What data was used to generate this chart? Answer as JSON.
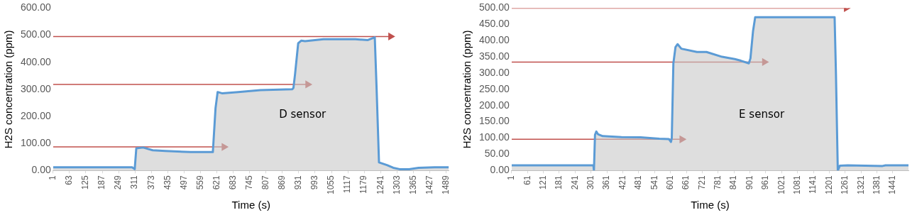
{
  "chart_data": [
    {
      "type": "area",
      "xlabel": "Time (s)",
      "ylabel": "H2S concentration (ppm)",
      "annotations": [
        "D sensor"
      ],
      "grid": false,
      "legend": false,
      "xlim": [
        1,
        1500
      ],
      "xticks": [
        1,
        63,
        125,
        187,
        249,
        311,
        373,
        435,
        497,
        559,
        621,
        683,
        745,
        807,
        869,
        931,
        993,
        1055,
        1117,
        1179,
        1241,
        1303,
        1365,
        1427,
        1489
      ],
      "ylim": [
        0,
        600
      ],
      "yticks": [
        {
          "value": 0,
          "label": "0.00"
        },
        {
          "value": 100,
          "label": "100.00"
        },
        {
          "value": 200,
          "label": "200.00"
        },
        {
          "value": 300,
          "label": "300.00"
        },
        {
          "value": 400,
          "label": "400.00"
        },
        {
          "value": 500,
          "label": "500.00"
        },
        {
          "value": 600,
          "label": "600.00"
        }
      ],
      "series": [
        {
          "color": "#5b9bd5",
          "x": [
            1,
            100,
            200,
            300,
            310,
            316,
            342,
            378,
            426,
            522,
            604,
            606,
            616,
            624,
            642,
            702,
            786,
            906,
            911,
            917,
            929,
            941,
            955,
            1025,
            1145,
            1193,
            1219,
            1226,
            1235,
            1265,
            1289,
            1313,
            1349,
            1385,
            1445,
            1499
          ],
          "values": [
            12,
            12,
            12,
            12,
            5,
            82,
            85,
            75,
            72,
            68,
            68,
            70,
            230,
            290,
            285,
            290,
            297,
            300,
            305,
            355,
            470,
            480,
            478,
            485,
            485,
            482,
            492,
            300,
            30,
            20,
            10,
            5,
            5,
            10,
            12,
            12
          ]
        },
        {
          "type": "line",
          "color": "#c0504d",
          "marker": "triangle",
          "x": [
            1,
            648
          ],
          "values": [
            87,
            87
          ]
        },
        {
          "type": "line",
          "color": "#c0504d",
          "marker": "triangle",
          "x": [
            1,
            965
          ],
          "values": [
            318,
            318
          ]
        },
        {
          "type": "line",
          "color": "#c0504d",
          "marker": "triangle",
          "x": [
            1,
            1279
          ],
          "values": [
            495,
            495
          ]
        }
      ]
    },
    {
      "type": "area",
      "xlabel": "Time (s)",
      "ylabel": "H2S concentration (ppm)",
      "annotations": [
        "E sensor"
      ],
      "grid": false,
      "legend": false,
      "xlim": [
        1,
        1500
      ],
      "xticks": [
        1,
        61,
        121,
        181,
        241,
        301,
        361,
        421,
        481,
        541,
        601,
        661,
        721,
        781,
        841,
        901,
        961,
        1021,
        1081,
        1141,
        1201,
        1261,
        1321,
        1381,
        1441
      ],
      "ylim": [
        0,
        500
      ],
      "yticks": [
        {
          "value": 0,
          "label": "0.00"
        },
        {
          "value": 50,
          "label": "50.00"
        },
        {
          "value": 100,
          "label": "100.00"
        },
        {
          "value": 150,
          "label": "150.00"
        },
        {
          "value": 200,
          "label": "200.00"
        },
        {
          "value": 250,
          "label": "250.00"
        },
        {
          "value": 300,
          "label": "300.00"
        },
        {
          "value": 350,
          "label": "350.00"
        },
        {
          "value": 400,
          "label": "400.00"
        },
        {
          "value": 450,
          "label": "450.00"
        },
        {
          "value": 500,
          "label": "500.00"
        }
      ],
      "series": [
        {
          "color": "#5b9bd5",
          "x": [
            1,
            100,
            200,
            310,
            312,
            316,
            321,
            327,
            345,
            416,
            488,
            559,
            595,
            603,
            606,
            612,
            620,
            628,
            642,
            701,
            737,
            796,
            844,
            867,
            897,
            903,
            913,
            921,
            1000,
            1100,
            1221,
            1226,
            1233,
            1241,
            1271,
            1402,
            1413,
            1500
          ],
          "values": [
            16,
            16,
            16,
            16,
            0,
            110,
            120,
            112,
            106,
            103,
            102,
            98,
            97,
            88,
            100,
            330,
            380,
            389,
            375,
            365,
            365,
            350,
            343,
            338,
            330,
            345,
            430,
            472,
            472,
            472,
            472,
            300,
            0,
            15,
            16,
            14,
            16,
            16
          ]
        },
        {
          "type": "line",
          "color": "#c0504d",
          "marker": "triangle",
          "x": [
            1,
            1265
          ],
          "values": [
            500,
            500
          ]
        },
        {
          "type": "line",
          "color": "#c0504d",
          "marker": "triangle",
          "x": [
            1,
            956
          ],
          "values": [
            334,
            334
          ]
        },
        {
          "type": "line",
          "color": "#c0504d",
          "marker": "triangle",
          "x": [
            1,
            644
          ],
          "values": [
            96,
            96
          ]
        }
      ]
    }
  ]
}
